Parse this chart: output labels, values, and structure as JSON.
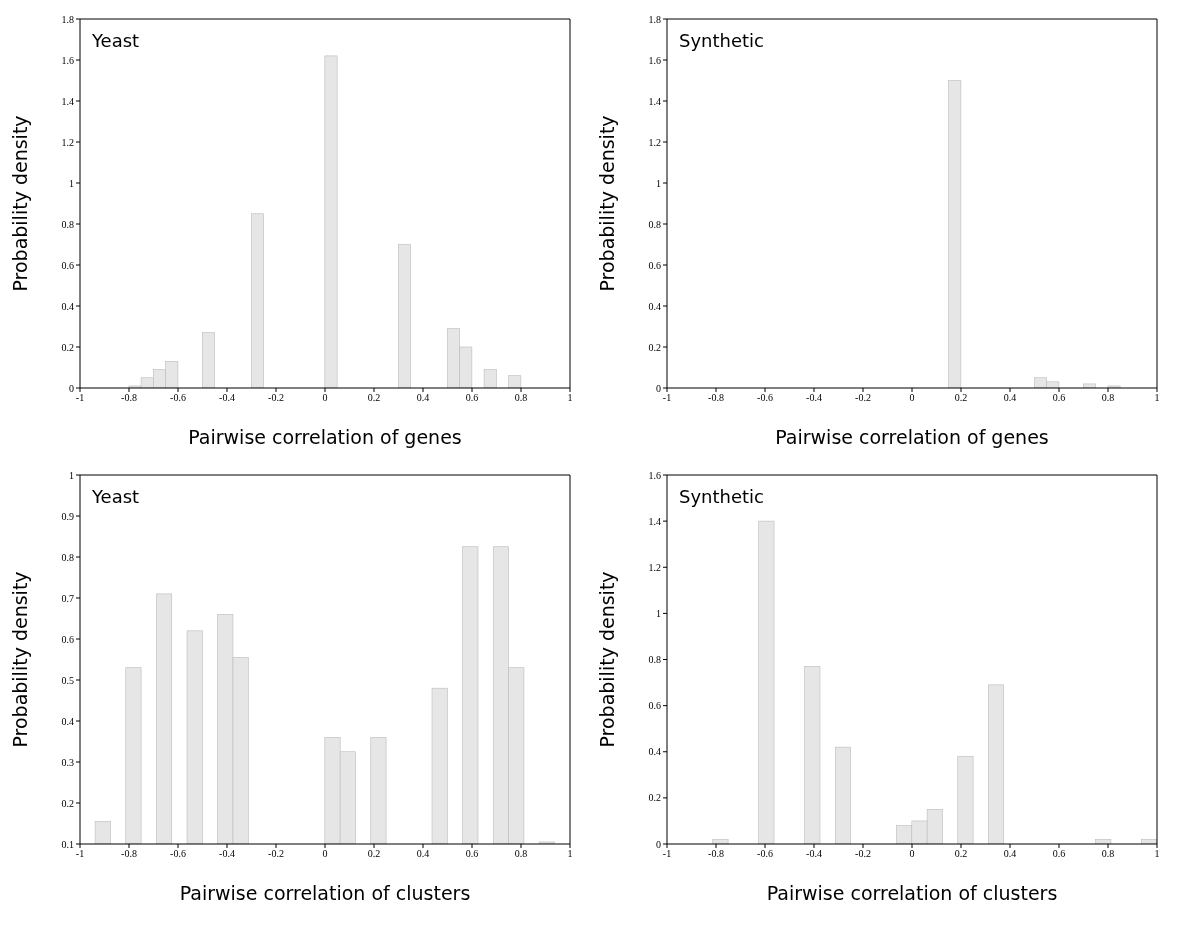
{
  "chart_data": [
    {
      "type": "histogram",
      "title": "Yeast",
      "xlabel": "Pairwise correlation of genes",
      "ylabel": "Probability density",
      "color": "#e6e6e6",
      "bins": [
        -1,
        -0.95,
        -0.9,
        -0.85,
        -0.8,
        -0.75,
        -0.7,
        -0.65,
        -0.6,
        -0.55,
        -0.5,
        -0.45,
        -0.4,
        -0.35,
        -0.3,
        -0.25,
        -0.2,
        -0.15,
        -0.1,
        -0.05,
        0,
        0.05,
        0.1,
        0.15,
        0.2,
        0.25,
        0.3,
        0.35,
        0.4,
        0.45,
        0.5,
        0.55,
        0.6,
        0.65,
        0.7,
        0.75,
        0.8,
        0.85,
        0.9,
        0.95,
        1
      ],
      "values": [
        null,
        null,
        null,
        null,
        0.01,
        0.05,
        0.09,
        0.13,
        null,
        null,
        0.27,
        null,
        null,
        null,
        0.85,
        null,
        null,
        null,
        null,
        null,
        1.62,
        null,
        null,
        null,
        null,
        null,
        0.7,
        null,
        null,
        null,
        0.29,
        0.2,
        null,
        0.09,
        null,
        0.06,
        null,
        null,
        null,
        null
      ],
      "xlim": [
        -1,
        1
      ],
      "ylim": [
        0,
        1.8
      ],
      "xticks": [
        -1,
        -0.8,
        -0.6,
        -0.4,
        -0.2,
        0,
        0.2,
        0.4,
        0.6,
        0.8,
        1
      ],
      "yticks": [
        0,
        0.2,
        0.4,
        0.6,
        0.8,
        1,
        1.2,
        1.4,
        1.6,
        1.8
      ]
    },
    {
      "type": "histogram",
      "title": "Synthetic",
      "xlabel": "Pairwise correlation of genes",
      "ylabel": "Probability density",
      "color": "#e6e6e6",
      "bins": [
        -1,
        -0.95,
        -0.9,
        -0.85,
        -0.8,
        -0.75,
        -0.7,
        -0.65,
        -0.6,
        -0.55,
        -0.5,
        -0.45,
        -0.4,
        -0.35,
        -0.3,
        -0.25,
        -0.2,
        -0.15,
        -0.1,
        -0.05,
        0,
        0.05,
        0.1,
        0.15,
        0.2,
        0.25,
        0.3,
        0.35,
        0.4,
        0.45,
        0.5,
        0.55,
        0.6,
        0.65,
        0.7,
        0.75,
        0.8,
        0.85,
        0.9,
        0.95,
        1
      ],
      "values": [
        null,
        null,
        null,
        null,
        null,
        null,
        null,
        null,
        null,
        null,
        null,
        null,
        null,
        null,
        null,
        null,
        null,
        null,
        null,
        null,
        null,
        null,
        null,
        1.5,
        null,
        null,
        null,
        null,
        null,
        null,
        0.05,
        0.03,
        null,
        null,
        0.02,
        null,
        0.01,
        null,
        null,
        null
      ],
      "xlim": [
        -1,
        1
      ],
      "ylim": [
        0,
        1.8
      ],
      "xticks": [
        -1,
        -0.8,
        -0.6,
        -0.4,
        -0.2,
        0,
        0.2,
        0.4,
        0.6,
        0.8,
        1
      ],
      "yticks": [
        0,
        0.2,
        0.4,
        0.6,
        0.8,
        1,
        1.2,
        1.4,
        1.6,
        1.8
      ]
    },
    {
      "type": "histogram",
      "title": "Yeast",
      "xlabel": "Pairwise correlation of clusters",
      "ylabel": "Probability density",
      "color": "#e6e6e6",
      "bins": [
        -1,
        -0.9375,
        -0.875,
        -0.8125,
        -0.75,
        -0.6875,
        -0.625,
        -0.5625,
        -0.5,
        -0.4375,
        -0.375,
        -0.3125,
        -0.25,
        -0.1875,
        -0.125,
        -0.0625,
        0,
        0.0625,
        0.125,
        0.1875,
        0.25,
        0.3125,
        0.375,
        0.4375,
        0.5,
        0.5625,
        0.625,
        0.6875,
        0.75,
        0.8125,
        0.875,
        0.9375,
        1
      ],
      "values": [
        null,
        0.155,
        null,
        0.53,
        null,
        0.71,
        null,
        0.62,
        null,
        0.66,
        0.555,
        null,
        null,
        null,
        null,
        null,
        0.36,
        0.325,
        null,
        0.36,
        null,
        null,
        null,
        0.48,
        null,
        0.825,
        null,
        0.825,
        0.53,
        null,
        0.105,
        null
      ],
      "xlim": [
        -1,
        1
      ],
      "ylim": [
        0.1,
        1
      ],
      "xticks": [
        -1,
        -0.8,
        -0.6,
        -0.4,
        -0.2,
        0,
        0.2,
        0.4,
        0.6,
        0.8,
        1
      ],
      "yticks": [
        0.1,
        0.2,
        0.3,
        0.4,
        0.5,
        0.6,
        0.7,
        0.8,
        0.9,
        1
      ]
    },
    {
      "type": "histogram",
      "title": "Synthetic",
      "xlabel": "Pairwise correlation of clusters",
      "ylabel": "Probability density",
      "color": "#e6e6e6",
      "bins": [
        -1,
        -0.9375,
        -0.875,
        -0.8125,
        -0.75,
        -0.6875,
        -0.625,
        -0.5625,
        -0.5,
        -0.4375,
        -0.375,
        -0.3125,
        -0.25,
        -0.1875,
        -0.125,
        -0.0625,
        0,
        0.0625,
        0.125,
        0.1875,
        0.25,
        0.3125,
        0.375,
        0.4375,
        0.5,
        0.5625,
        0.625,
        0.6875,
        0.75,
        0.8125,
        0.875,
        0.9375,
        1
      ],
      "values": [
        null,
        null,
        null,
        0.02,
        null,
        null,
        1.4,
        null,
        null,
        0.77,
        null,
        0.42,
        null,
        null,
        null,
        0.08,
        0.1,
        0.15,
        null,
        0.38,
        null,
        0.69,
        null,
        null,
        null,
        null,
        null,
        null,
        0.02,
        null,
        null,
        0.02
      ],
      "xlim": [
        -1,
        1
      ],
      "ylim": [
        0,
        1.6
      ],
      "xticks": [
        -1,
        -0.8,
        -0.6,
        -0.4,
        -0.2,
        0,
        0.2,
        0.4,
        0.6,
        0.8,
        1
      ],
      "yticks": [
        0,
        0.2,
        0.4,
        0.6,
        0.8,
        1,
        1.2,
        1.4,
        1.6
      ]
    }
  ]
}
